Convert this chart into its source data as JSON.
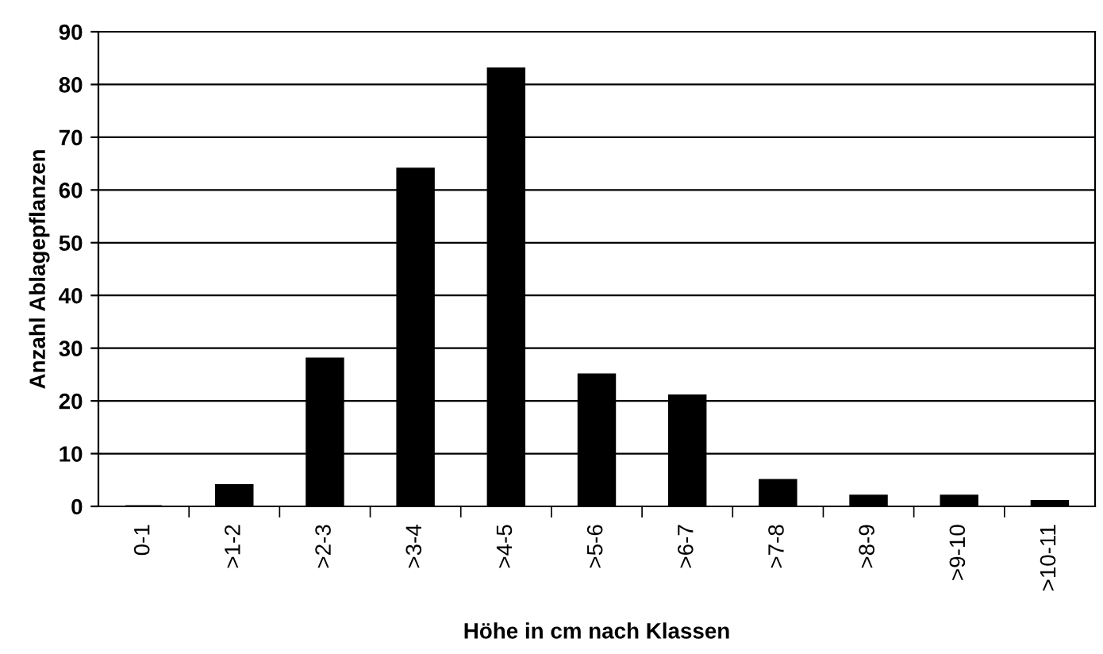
{
  "chart_data": {
    "type": "bar",
    "xlabel": "Höhe in cm nach Klassen",
    "ylabel": "Anzahl Ablagepflanzen",
    "categories": [
      "0-1",
      ">1-2",
      ">2-3",
      ">3-4",
      ">4-5",
      ">5-6",
      ">6-7",
      ">7-8",
      ">8-9",
      ">9-10",
      ">10-11"
    ],
    "values": [
      0,
      4,
      28,
      64,
      83,
      25,
      21,
      5,
      2,
      2,
      1
    ],
    "color": "#000000",
    "ylim": [
      0,
      90
    ],
    "yticks": [
      0,
      10,
      20,
      30,
      40,
      50,
      60,
      70,
      80,
      90
    ],
    "grid": "y"
  }
}
